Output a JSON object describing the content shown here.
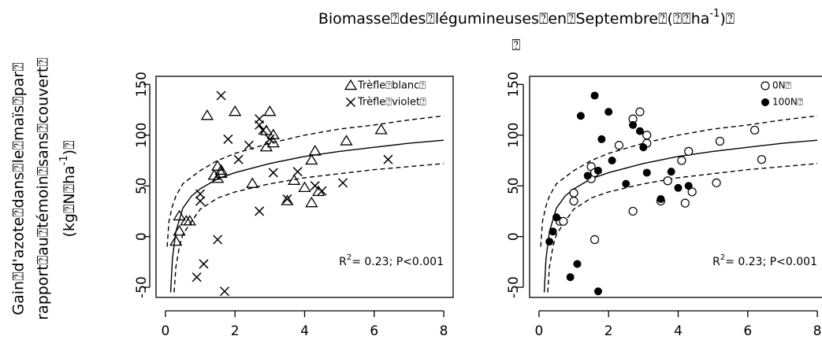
{
  "figure": {
    "title": "Biomasse⍰des⍰légumineuses⍰en⍰Septembre⍰(⍰⍰ha",
    "title_sup": "-1",
    "title_end": ")⍰",
    "title_line2": "⍰",
    "ylabel_1": "Gain⍰d'azote⍰dans⍰le⍰maïs⍰par⍰",
    "ylabel_2": "rapport⍰au⍰témoin⍰sans⍰couvert⍰",
    "ylabel_3": "(kg⍰N⍰ha",
    "ylabel_3_sup": "-1",
    "ylabel_3_end": ")⍰"
  },
  "chart_data": [
    {
      "type": "scatter",
      "xlim": [
        -0.27,
        8.27
      ],
      "ylim": [
        -60,
        158
      ],
      "xticks": [
        0,
        2,
        4,
        6,
        8
      ],
      "yticks": [
        -50,
        0,
        50,
        100,
        150
      ],
      "legend": "top-right",
      "annotation": "R",
      "annotation_sup": "2",
      "annotation_end": "= 0.23; P<0.001",
      "series": [
        {
          "name": "Trèfle⍰blanc⍰",
          "marker": "triangle",
          "color": "#000000",
          "x": [
            0.3,
            0.4,
            0.4,
            0.6,
            0.7,
            1.2,
            1.4,
            1.5,
            1.5,
            1.6,
            1.6,
            2.0,
            2.5,
            2.9,
            2.9,
            3.0,
            3.1,
            3.1,
            3.5,
            3.7,
            4.0,
            4.2,
            4.2,
            4.3,
            4.4,
            5.2,
            6.2
          ],
          "values": [
            -5,
            5,
            20,
            15,
            15,
            119,
            60,
            69,
            57,
            65,
            62,
            123,
            52,
            104,
            88,
            123,
            92,
            100,
            35,
            55,
            48,
            75,
            33,
            84,
            44,
            94,
            105
          ]
        },
        {
          "name": "Trèfle⍰violet⍰",
          "marker": "cross",
          "color": "#000000",
          "x": [
            1.0,
            1.0,
            1.1,
            0.9,
            1.5,
            1.6,
            1.7,
            1.8,
            2.1,
            2.4,
            2.7,
            2.7,
            2.8,
            2.7,
            3.0,
            3.1,
            3.5,
            3.8,
            4.3,
            4.5,
            5.1,
            6.4
          ],
          "values": [
            42,
            35,
            -27,
            -40,
            -3,
            139,
            -54,
            96,
            76,
            90,
            116,
            110,
            105,
            25,
            96,
            63,
            37,
            64,
            50,
            45,
            53,
            76
          ]
        }
      ],
      "fit_lines": [
        {
          "style": "solid",
          "x": [
            0.15,
            0.2,
            0.3,
            0.5,
            0.75,
            1,
            1.5,
            2,
            3,
            4,
            5,
            6,
            7,
            8
          ],
          "values": [
            -55,
            -22,
            5,
            28,
            40,
            47,
            57,
            63,
            72,
            79,
            84,
            88,
            92,
            95
          ]
        },
        {
          "style": "dashed",
          "x": [
            0.05,
            0.1,
            0.2,
            0.3,
            0.5,
            1,
            1.5,
            2,
            3,
            4,
            5,
            6,
            7,
            8
          ],
          "values": [
            -10,
            15,
            30,
            40,
            52,
            65,
            75,
            82,
            92,
            100,
            106,
            110,
            115,
            119
          ]
        },
        {
          "style": "dashed",
          "x": [
            0.25,
            0.3,
            0.4,
            0.5,
            0.75,
            1,
            1.5,
            2,
            3,
            4,
            5,
            6,
            7,
            8
          ],
          "values": [
            -55,
            -30,
            -10,
            2,
            15,
            27,
            38,
            44,
            52,
            58,
            62,
            66,
            69,
            72
          ]
        }
      ]
    },
    {
      "type": "scatter",
      "xlim": [
        -0.27,
        8.27
      ],
      "ylim": [
        -60,
        158
      ],
      "xticks": [
        0,
        2,
        4,
        6,
        8
      ],
      "yticks": [
        -50,
        0,
        50,
        100,
        150
      ],
      "legend": "top-right",
      "annotation": "R",
      "annotation_sup": "2",
      "annotation_end": "= 0.23; P<0.001",
      "series": [
        {
          "name": "0N⍰",
          "marker": "open-circle",
          "color": "#000000",
          "x": [
            0.6,
            0.7,
            1.0,
            1.0,
            1.5,
            1.5,
            1.6,
            1.6,
            2.3,
            2.7,
            2.7,
            2.9,
            3.1,
            3.1,
            3.5,
            3.7,
            4.1,
            4.2,
            4.3,
            4.4,
            5.2,
            5.1,
            6.2,
            6.4
          ],
          "values": [
            15,
            15,
            43,
            35,
            69,
            57,
            -3,
            63,
            90,
            116,
            25,
            123,
            100,
            92,
            35,
            55,
            75,
            33,
            84,
            44,
            94,
            53,
            105,
            76
          ]
        },
        {
          "name": "100N⍰",
          "marker": "filled-circle",
          "color": "#000000",
          "x": [
            0.3,
            0.4,
            0.5,
            0.9,
            1.1,
            1.2,
            1.4,
            1.6,
            1.7,
            1.7,
            1.8,
            2.0,
            2.1,
            2.5,
            2.7,
            2.9,
            3.0,
            3.1,
            3.5,
            3.8,
            4.0,
            4.3
          ],
          "values": [
            -5,
            5,
            19,
            -40,
            -27,
            119,
            60,
            139,
            -54,
            65,
            96,
            123,
            75,
            52,
            110,
            104,
            88,
            63,
            37,
            64,
            48,
            50
          ]
        }
      ],
      "fit_lines": [
        {
          "style": "solid",
          "x": [
            0.15,
            0.2,
            0.3,
            0.5,
            0.75,
            1,
            1.5,
            2,
            3,
            4,
            5,
            6,
            7,
            8
          ],
          "values": [
            -55,
            -22,
            5,
            28,
            40,
            47,
            57,
            63,
            72,
            79,
            84,
            88,
            92,
            95
          ]
        },
        {
          "style": "dashed",
          "x": [
            0.05,
            0.1,
            0.2,
            0.3,
            0.5,
            1,
            1.5,
            2,
            3,
            4,
            5,
            6,
            7,
            8
          ],
          "values": [
            -10,
            15,
            30,
            40,
            52,
            65,
            75,
            82,
            92,
            100,
            106,
            110,
            115,
            119
          ]
        },
        {
          "style": "dashed",
          "x": [
            0.25,
            0.3,
            0.4,
            0.5,
            0.75,
            1,
            1.5,
            2,
            3,
            4,
            5,
            6,
            7,
            8
          ],
          "values": [
            -55,
            -30,
            -10,
            2,
            15,
            27,
            38,
            44,
            52,
            58,
            62,
            66,
            69,
            72
          ]
        }
      ]
    }
  ]
}
